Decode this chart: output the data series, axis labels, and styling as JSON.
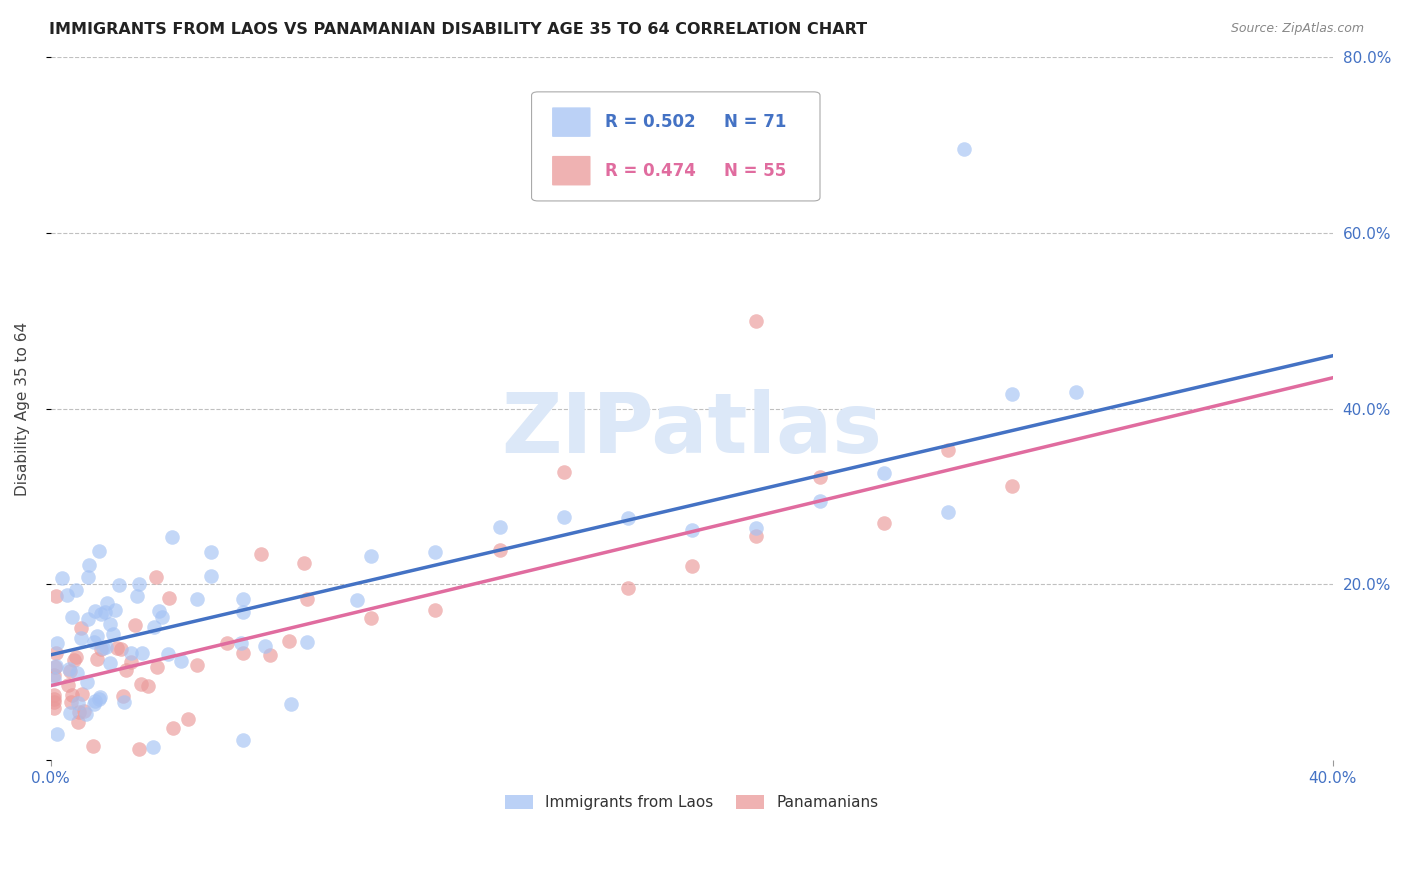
{
  "title": "IMMIGRANTS FROM LAOS VS PANAMANIAN DISABILITY AGE 35 TO 64 CORRELATION CHART",
  "source": "Source: ZipAtlas.com",
  "ylabel": "Disability Age 35 to 64",
  "xlim": [
    0.0,
    0.4
  ],
  "ylim": [
    0.0,
    0.8
  ],
  "xticks": [
    0.0,
    0.4
  ],
  "xticklabels": [
    "0.0%",
    "40.0%"
  ],
  "yticks_right": [
    0.2,
    0.4,
    0.6,
    0.8
  ],
  "yticklabels_right": [
    "20.0%",
    "40.0%",
    "60.0%",
    "80.0%"
  ],
  "blue_color": "#a4c2f4",
  "pink_color": "#ea9999",
  "blue_line_color": "#4472c4",
  "pink_line_color": "#e06c9f",
  "axis_tick_color": "#4472c4",
  "legend_r1": "R = 0.502",
  "legend_n1": "N = 71",
  "legend_r2": "R = 0.474",
  "legend_n2": "N = 55",
  "watermark": "ZIPatlas",
  "background_color": "#ffffff",
  "grid_color": "#c0c0c0",
  "blue_trendline_x": [
    0.0,
    0.4
  ],
  "blue_trendline_y": [
    0.12,
    0.46
  ],
  "pink_trendline_x": [
    0.0,
    0.4
  ],
  "pink_trendline_y": [
    0.085,
    0.435
  ]
}
